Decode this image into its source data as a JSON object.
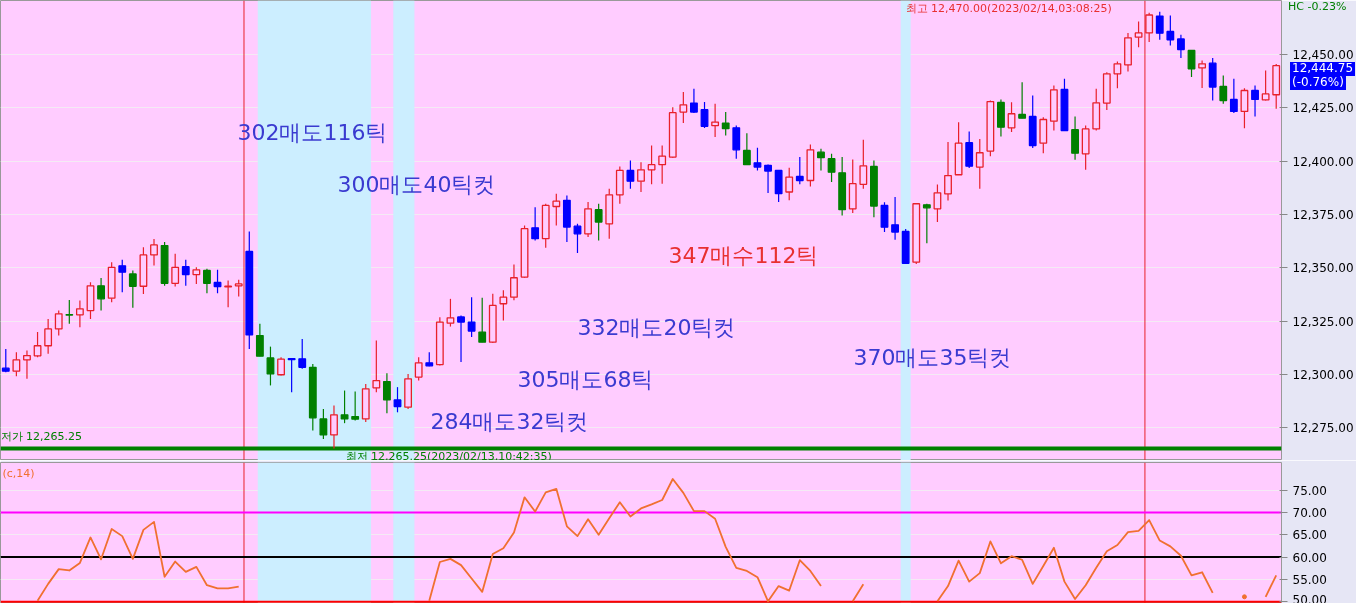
{
  "chart_data": [
    {
      "type": "candlestick",
      "categories": [
        null,
        null,
        null,
        null,
        null,
        null,
        null,
        null,
        null,
        null,
        null,
        null,
        null,
        null,
        null,
        null,
        null,
        null,
        null,
        null,
        null,
        null,
        null,
        null,
        null,
        null,
        null,
        null,
        null,
        null,
        null,
        null,
        null,
        null,
        null,
        null,
        null,
        null,
        null,
        null,
        null,
        null,
        null,
        null,
        null,
        null,
        null,
        null,
        null,
        null,
        null,
        null,
        null,
        null,
        null,
        null,
        null,
        null,
        null,
        null,
        null,
        null,
        null,
        null,
        null,
        null,
        null,
        null,
        null,
        null,
        null,
        null,
        null,
        null,
        null,
        null,
        null,
        null,
        null,
        null,
        null,
        null,
        null,
        null,
        null,
        null,
        null,
        null,
        null,
        null,
        null,
        null,
        null,
        null,
        null,
        null,
        null,
        null,
        null,
        null,
        null,
        null,
        null,
        null,
        null,
        null,
        null,
        null,
        null,
        null,
        null,
        null,
        null,
        null,
        null,
        null,
        null,
        null,
        null,
        null,
        null
      ],
      "ohlc": [
        [
          12302.9,
          12311.9,
          12301.0,
          12301.5
        ],
        [
          12301.5,
          12310.4,
          12299.1,
          12306.8
        ],
        [
          12306.8,
          12311.2,
          12297.9,
          12308.8
        ],
        [
          12308.7,
          12319.8,
          12308.0,
          12313.4
        ],
        [
          12313.4,
          12326.0,
          12309.6,
          12321.3
        ],
        [
          12321.3,
          12329.9,
          12318.2,
          12328.4
        ],
        [
          12328.0,
          12334.9,
          12323.7,
          12327.8
        ],
        [
          12327.9,
          12334.6,
          12322.1,
          12330.7
        ],
        [
          12329.9,
          12343.2,
          12326.0,
          12341.5
        ],
        [
          12341.5,
          12345.2,
          12329.9,
          12335.4
        ],
        [
          12335.7,
          12352.6,
          12333.8,
          12350.2
        ],
        [
          12350.9,
          12353.7,
          12338.5,
          12347.9
        ],
        [
          12347.1,
          12348.7,
          12331.2,
          12341.3
        ],
        [
          12341.3,
          12359.6,
          12337.7,
          12356.0
        ],
        [
          12356.0,
          12363.5,
          12351.0,
          12360.7
        ],
        [
          12360.4,
          12362.0,
          12341.6,
          12342.7
        ],
        [
          12342.7,
          12356.5,
          12341.2,
          12350.2
        ],
        [
          12350.5,
          12353.7,
          12341.6,
          12346.8
        ],
        [
          12346.8,
          12350.2,
          12342.4,
          12349.0
        ],
        [
          12348.7,
          12349.5,
          12338.0,
          12342.7
        ],
        [
          12343.1,
          12349.0,
          12338.0,
          12341.2
        ],
        [
          12341.0,
          12344.0,
          12331.5,
          12341.3
        ],
        [
          12341.5,
          12344.3,
          12336.5,
          12342.4
        ],
        [
          12357.6,
          12367.0,
          12311.9,
          12318.5
        ],
        [
          12318.2,
          12323.7,
          12308.5,
          12308.5
        ],
        [
          12307.7,
          12313.0,
          12294.8,
          12300.2
        ],
        [
          12299.8,
          12308.0,
          12299.4,
          12307.1
        ],
        [
          12307.4,
          12307.4,
          12291.6,
          12306.9
        ],
        [
          12307.3,
          12316.6,
          12302.6,
          12303.3
        ],
        [
          12303.3,
          12304.9,
          12273.7,
          12279.6
        ],
        [
          12279.1,
          12283.8,
          12269.7,
          12271.6
        ],
        [
          12271.6,
          12285.4,
          12265.25,
          12281.0
        ],
        [
          12281.0,
          12292.4,
          12277.1,
          12279.1
        ],
        [
          12280.2,
          12291.9,
          12278.3,
          12279.0
        ],
        [
          12279.1,
          12295.5,
          12277.6,
          12293.2
        ],
        [
          12293.7,
          12315.9,
          12291.6,
          12297.1
        ],
        [
          12296.6,
          12300.5,
          12281.8,
          12288.0
        ],
        [
          12288.0,
          12294.0,
          12282.2,
          12284.9
        ],
        [
          12284.6,
          12300.2,
          12283.8,
          12297.9
        ],
        [
          12298.7,
          12308.0,
          12297.1,
          12305.4
        ],
        [
          12305.4,
          12310.4,
          12303.8,
          12304.0
        ],
        [
          12304.6,
          12326.8,
          12304.1,
          12324.5
        ],
        [
          12324.0,
          12335.4,
          12322.4,
          12326.5
        ],
        [
          12326.9,
          12327.6,
          12305.8,
          12324.5
        ],
        [
          12324.5,
          12336.2,
          12317.5,
          12320.3
        ],
        [
          12319.8,
          12335.9,
          12315.1,
          12315.1
        ],
        [
          12315.1,
          12337.8,
          12314.7,
          12332.3
        ],
        [
          12333.1,
          12339.4,
          12325.3,
          12336.2
        ],
        [
          12336.2,
          12351.5,
          12334.7,
          12345.3
        ],
        [
          12345.6,
          12369.8,
          12345.3,
          12368.3
        ],
        [
          12368.7,
          12378.4,
          12362.8,
          12363.6
        ],
        [
          12363.6,
          12380.0,
          12359.4,
          12379.2
        ],
        [
          12378.7,
          12384.7,
          12369.8,
          12381.2
        ],
        [
          12381.6,
          12383.9,
          12362.0,
          12369.1
        ],
        [
          12369.5,
          12370.6,
          12356.9,
          12365.9
        ],
        [
          12365.9,
          12380.8,
          12364.4,
          12377.6
        ],
        [
          12377.2,
          12380.0,
          12362.8,
          12371.4
        ],
        [
          12370.6,
          12387.0,
          12363.6,
          12384.2
        ],
        [
          12384.2,
          12397.5,
          12380.0,
          12395.6
        ],
        [
          12395.6,
          12400.3,
          12387.0,
          12390.6
        ],
        [
          12390.6,
          12399.5,
          12385.5,
          12395.9
        ],
        [
          12395.9,
          12407.3,
          12389.1,
          12398.3
        ],
        [
          12398.3,
          12407.3,
          12389.4,
          12402.3
        ],
        [
          12401.9,
          12425.3,
          12401.6,
          12422.7
        ],
        [
          12423.0,
          12432.4,
          12417.8,
          12426.4
        ],
        [
          12427.2,
          12433.9,
          12422.5,
          12423.0
        ],
        [
          12424.1,
          12427.7,
          12415.5,
          12416.3
        ],
        [
          12416.6,
          12426.9,
          12411.3,
          12418.3
        ],
        [
          12417.8,
          12423.0,
          12412.0,
          12415.2
        ],
        [
          12415.6,
          12416.7,
          12401.1,
          12405.3
        ],
        [
          12405.0,
          12413.1,
          12398.3,
          12398.3
        ],
        [
          12399.2,
          12406.2,
          12395.6,
          12397.2
        ],
        [
          12398.0,
          12398.4,
          12385.0,
          12395.3
        ],
        [
          12395.6,
          12395.6,
          12380.8,
          12384.7
        ],
        [
          12385.5,
          12396.9,
          12381.6,
          12392.5
        ],
        [
          12392.8,
          12401.9,
          12389.1,
          12390.9
        ],
        [
          12390.9,
          12407.8,
          12388.1,
          12405.3
        ],
        [
          12404.2,
          12405.8,
          12395.6,
          12401.6
        ],
        [
          12401.1,
          12403.4,
          12390.2,
          12394.8
        ],
        [
          12394.5,
          12401.9,
          12374.5,
          12377.2
        ],
        [
          12377.6,
          12400.8,
          12375.6,
          12389.4
        ],
        [
          12389.1,
          12410.0,
          12387.0,
          12397.8
        ],
        [
          12397.5,
          12400.3,
          12373.7,
          12378.9
        ],
        [
          12379.2,
          12380.7,
          12366.7,
          12369.0
        ],
        [
          12370.1,
          12383.1,
          12363.1,
          12366.7
        ],
        [
          12367.0,
          12368.2,
          12352.1,
          12352.1
        ],
        [
          12352.6,
          12380.3,
          12351.8,
          12380.0
        ],
        [
          12379.5,
          12380.0,
          12361.5,
          12378.1
        ],
        [
          12377.6,
          12389.0,
          12371.4,
          12385.1
        ],
        [
          12384.6,
          12408.9,
          12381.5,
          12393.2
        ],
        [
          12393.6,
          12418.2,
          12393.5,
          12408.4
        ],
        [
          12408.6,
          12413.9,
          12396.7,
          12397.6
        ],
        [
          12397.2,
          12410.4,
          12387.0,
          12403.9
        ],
        [
          12404.7,
          12428.4,
          12402.3,
          12427.9
        ],
        [
          12427.5,
          12428.9,
          12411.5,
          12415.9
        ],
        [
          12415.6,
          12427.6,
          12413.6,
          12422.2
        ],
        [
          12421.9,
          12437.0,
          12420.1,
          12420.1
        ],
        [
          12420.9,
          12430.8,
          12406.1,
          12407.3
        ],
        [
          12408.4,
          12420.6,
          12403.7,
          12419.5
        ],
        [
          12418.7,
          12435.4,
          12414.3,
          12433.4
        ],
        [
          12433.6,
          12438.6,
          12414.3,
          12414.3
        ],
        [
          12414.7,
          12420.9,
          12400.6,
          12403.7
        ],
        [
          12403.4,
          12416.7,
          12395.9,
          12415.1
        ],
        [
          12415.1,
          12433.9,
          12414.3,
          12427.3
        ],
        [
          12427.2,
          12441.7,
          12424.0,
          12440.9
        ],
        [
          12440.9,
          12446.7,
          12434.2,
          12445.6
        ],
        [
          12445.1,
          12460.1,
          12442.0,
          12457.8
        ],
        [
          12458.1,
          12465.5,
          12453.4,
          12460.1
        ],
        [
          12460.1,
          12469.5,
          12455.8,
          12468.5
        ],
        [
          12468.0,
          12470.0,
          12456.9,
          12460.0
        ],
        [
          12460.8,
          12468.3,
          12454.2,
          12456.9
        ],
        [
          12457.3,
          12459.2,
          12448.3,
          12452.3
        ],
        [
          12451.9,
          12451.9,
          12439.4,
          12443.3
        ],
        [
          12443.7,
          12447.2,
          12434.3,
          12445.6
        ],
        [
          12445.9,
          12448.3,
          12428.4,
          12434.7
        ],
        [
          12435.0,
          12440.1,
          12426.9,
          12428.4
        ],
        [
          12428.9,
          12438.6,
          12422.5,
          12423.3
        ],
        [
          12423.3,
          12434.2,
          12415.4,
          12433.1
        ],
        [
          12433.1,
          12435.4,
          12420.9,
          12428.9
        ],
        [
          12428.7,
          12442.5,
          12428.4,
          12431.5
        ],
        [
          12431.1,
          12445.5,
          12424.5,
          12444.75
        ]
      ],
      "colors": [
        "#0000ff",
        "#e8202a",
        "#e8202a",
        "#e8202a",
        "#e8202a",
        "#e8202a",
        "#008000",
        "#e8202a",
        "#e8202a",
        "#008000",
        "#e8202a",
        "#0000ff",
        "#008000",
        "#e8202a",
        "#e8202a",
        "#008000",
        "#e8202a",
        "#0000ff",
        "#e8202a",
        "#008000",
        "#0000ff",
        "#e8202a",
        "#e8202a",
        "#0000ff",
        "#008000",
        "#008000",
        "#e8202a",
        "#0000ff",
        "#0000ff",
        "#008000",
        "#008000",
        "#e8202a",
        "#008000",
        "#008000",
        "#e8202a",
        "#e8202a",
        "#008000",
        "#0000ff",
        "#e8202a",
        "#e8202a",
        "#0000ff",
        "#e8202a",
        "#e8202a",
        "#0000ff",
        "#0000ff",
        "#008000",
        "#e8202a",
        "#e8202a",
        "#e8202a",
        "#e8202a",
        "#0000ff",
        "#e8202a",
        "#e8202a",
        "#0000ff",
        "#0000ff",
        "#e8202a",
        "#008000",
        "#e8202a",
        "#e8202a",
        "#0000ff",
        "#e8202a",
        "#e8202a",
        "#e8202a",
        "#e8202a",
        "#e8202a",
        "#0000ff",
        "#0000ff",
        "#e8202a",
        "#008000",
        "#0000ff",
        "#008000",
        "#0000ff",
        "#0000ff",
        "#0000ff",
        "#e8202a",
        "#0000ff",
        "#e8202a",
        "#008000",
        "#008000",
        "#008000",
        "#e8202a",
        "#e8202a",
        "#008000",
        "#0000ff",
        "#0000ff",
        "#0000ff",
        "#e8202a",
        "#008000",
        "#e8202a",
        "#e8202a",
        "#e8202a",
        "#0000ff",
        "#e8202a",
        "#e8202a",
        "#008000",
        "#e8202a",
        "#008000",
        "#0000ff",
        "#e8202a",
        "#e8202a",
        "#0000ff",
        "#008000",
        "#e8202a",
        "#e8202a",
        "#e8202a",
        "#e8202a",
        "#e8202a",
        "#e8202a",
        "#e8202a",
        "#0000ff",
        "#0000ff",
        "#0000ff",
        "#008000",
        "#e8202a",
        "#0000ff",
        "#008000",
        "#0000ff",
        "#e8202a",
        "#0000ff",
        "#e8202a",
        "#e8202a"
      ],
      "ylim": [
        12259.6,
        12475.3
      ],
      "yticks": [
        {
          "value": 12275,
          "label": "12,275.00"
        },
        {
          "value": 12300,
          "label": "12,300.00"
        },
        {
          "value": 12325,
          "label": "12,325.00"
        },
        {
          "value": 12350,
          "label": "12,350.00"
        },
        {
          "value": 12375,
          "label": "12,375.00"
        },
        {
          "value": 12400,
          "label": "12,400.00"
        },
        {
          "value": 12425,
          "label": "12,425.00"
        },
        {
          "value": 12450,
          "label": "12,450.00"
        }
      ],
      "tick_labels": "y",
      "grid": "y",
      "ref_lines": [
        {
          "axis": "y",
          "value": 12265.25,
          "label": "저가 12,265.25",
          "color": "#008000"
        }
      ],
      "annotations": [
        "302매도116틱",
        "300매도40틱컷",
        "347매수112틱",
        "332매도20틱컷",
        "370매도35틱컷",
        "305매도68틱",
        "284매도32틱컷",
        "최저 12,265.25(2023/02/13,10:42:35)",
        "최고 12,470.00(2023/02/14,03:08:25)",
        "HC -0.23%",
        "12,444.75",
        "(-0.76%)"
      ]
    },
    {
      "type": "line",
      "categories": [
        null,
        null,
        null,
        null,
        null,
        null,
        null,
        null,
        null,
        null,
        null,
        null,
        null,
        null,
        null,
        null,
        null,
        null,
        null,
        null,
        null,
        null,
        null,
        null,
        null,
        null,
        null,
        null,
        null,
        null,
        null,
        null,
        null,
        null,
        null,
        null,
        null,
        null,
        null,
        null,
        null,
        null,
        null,
        null,
        null,
        null,
        null,
        null,
        null,
        null,
        null,
        null,
        null,
        null,
        null,
        null,
        null,
        null,
        null,
        null,
        null,
        null,
        null,
        null,
        null,
        null,
        null,
        null,
        null,
        null,
        null,
        null,
        null,
        null,
        null,
        null,
        null,
        null,
        null,
        null,
        null,
        null,
        null,
        null,
        null,
        null,
        null,
        null,
        null,
        null,
        null,
        null,
        null,
        null,
        null,
        null,
        null,
        null,
        null,
        null,
        null,
        null,
        null,
        null,
        null,
        null,
        null,
        null,
        null,
        null,
        null,
        null,
        null,
        null,
        null,
        null,
        null,
        null,
        null,
        null,
        null
      ],
      "series": [
        {
          "color": "#f07030",
          "values": [
            null,
            null,
            null,
            50.2,
            54.0,
            57.3,
            57.0,
            58.7,
            64.4,
            59.5,
            66.3,
            64.7,
            59.6,
            66.1,
            67.9,
            55.6,
            59.0,
            56.7,
            57.8,
            53.7,
            53.0,
            53.0,
            53.4,
            null,
            null,
            null,
            null,
            null,
            null,
            null,
            null,
            null,
            null,
            null,
            null,
            null,
            null,
            null,
            null,
            null,
            50.2,
            58.9,
            59.6,
            58.2,
            55.2,
            52.2,
            60.7,
            62.0,
            65.5,
            73.4,
            70.2,
            74.5,
            75.3,
            66.9,
            64.7,
            68.5,
            65.0,
            68.7,
            72.3,
            69.1,
            70.9,
            71.8,
            72.8,
            77.5,
            74.4,
            70.3,
            70.3,
            68.6,
            62.3,
            57.6,
            56.9,
            55.5,
            50.1,
            53.5,
            52.5,
            59.3,
            56.9,
            53.5,
            null,
            null,
            50.1,
            53.9,
            null,
            null,
            null,
            null,
            null,
            null,
            50.1,
            53.5,
            59.2,
            54.5,
            56.4,
            63.5,
            58.6,
            60.2,
            59.4,
            54.0,
            58.0,
            62.1,
            54.5,
            50.6,
            53.7,
            57.6,
            61.3,
            62.7,
            65.6,
            65.9,
            68.3,
            63.7,
            62.4,
            60.3,
            55.9,
            56.6,
            52.0,
            null,
            null,
            51.1,
            null,
            51.1,
            55.9
          ]
        }
      ],
      "ylim": [
        49.6,
        81.2
      ],
      "yticks": [
        {
          "value": 50,
          "label": "50.00"
        },
        {
          "value": 55,
          "label": "55.00"
        },
        {
          "value": 60,
          "label": "60.00"
        },
        {
          "value": 65,
          "label": "65.00"
        },
        {
          "value": 70,
          "label": "70.00"
        },
        {
          "value": 75,
          "label": "75.00"
        }
      ],
      "tick_labels": "y",
      "grid": "y",
      "ref_lines": [
        {
          "axis": "y",
          "value": 50,
          "color": "#ff0000"
        },
        {
          "axis": "y",
          "value": 60,
          "color": "#000000"
        },
        {
          "axis": "y",
          "value": 70,
          "color": "#ff00ff"
        }
      ],
      "annotations": [
        "(c,14)"
      ]
    }
  ]
}
